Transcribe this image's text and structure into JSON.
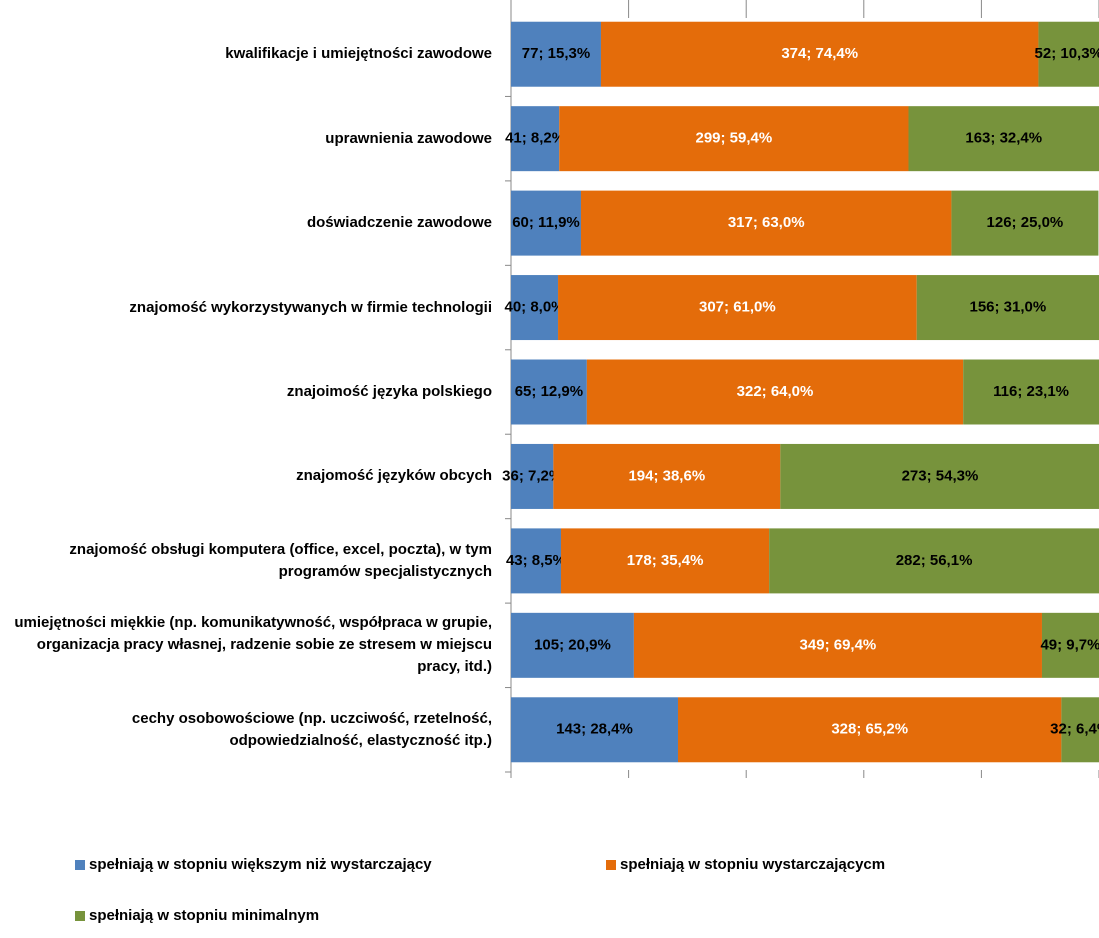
{
  "chart_data": {
    "type": "stacked_bar_horizontal",
    "categories": [
      "kwalifikacje i umiejętności zawodowe",
      "uprawnienia zawodowe",
      "doświadczenie zawodowe",
      "znajomość wykorzystywanych w firmie technologii",
      "znajoimość języka polskiego",
      "znajomość języków obcych",
      "znajomość obsługi komputera (office, excel, poczta), w tym programów specjalistycznych",
      "umiejętności miękkie  (np. komunikatywność, współpraca w grupie, organizacja pracy własnej, radzenie sobie ze stresem w miejscu pracy, itd.)",
      "cechy osobowościowe (np. uczciwość, rzetelność, odpowiedzialność, elastyczność itp.)"
    ],
    "series": [
      {
        "name": "spełniają w stopniu większym niż wystarczający",
        "color": "#4f81bd",
        "label_color": "#000000",
        "values": [
          15.3,
          8.2,
          11.9,
          8.0,
          12.9,
          7.2,
          8.5,
          20.9,
          28.4
        ],
        "value_labels": [
          "77; 15,3%",
          "41; 8,2%",
          "60; 11,9%",
          "40; 8,0%",
          "65; 12,9%",
          "36; 7,2%",
          "43; 8,5%",
          "105; 20,9%",
          "143; 28,4%"
        ]
      },
      {
        "name": "spełniają w stopniu wystarczającycm",
        "color": "#e46c0a",
        "label_color": "#ffffff",
        "values": [
          74.4,
          59.4,
          63.0,
          61.0,
          64.0,
          38.6,
          35.4,
          69.4,
          65.2
        ],
        "value_labels": [
          "374; 74,4%",
          "299; 59,4%",
          "317; 63,0%",
          "307; 61,0%",
          "322; 64,0%",
          "194; 38,6%",
          "178; 35,4%",
          "349; 69,4%",
          "328; 65,2%"
        ]
      },
      {
        "name": "spełniają w stopniu minimalnym",
        "color": "#77933c",
        "label_color": "#000000",
        "values": [
          10.3,
          32.4,
          25.0,
          31.0,
          23.1,
          54.3,
          56.1,
          9.7,
          6.4
        ],
        "value_labels": [
          "52; 10,3%",
          "163; 32,4%",
          "126; 25,0%",
          "156; 31,0%",
          "116; 23,1%",
          "273; 54,3%",
          "282; 56,1%",
          "49; 9,7%",
          "32; 6,4%"
        ]
      }
    ],
    "xlim": [
      0,
      100
    ],
    "xticks": [
      0,
      20,
      40,
      60,
      80,
      100
    ]
  }
}
